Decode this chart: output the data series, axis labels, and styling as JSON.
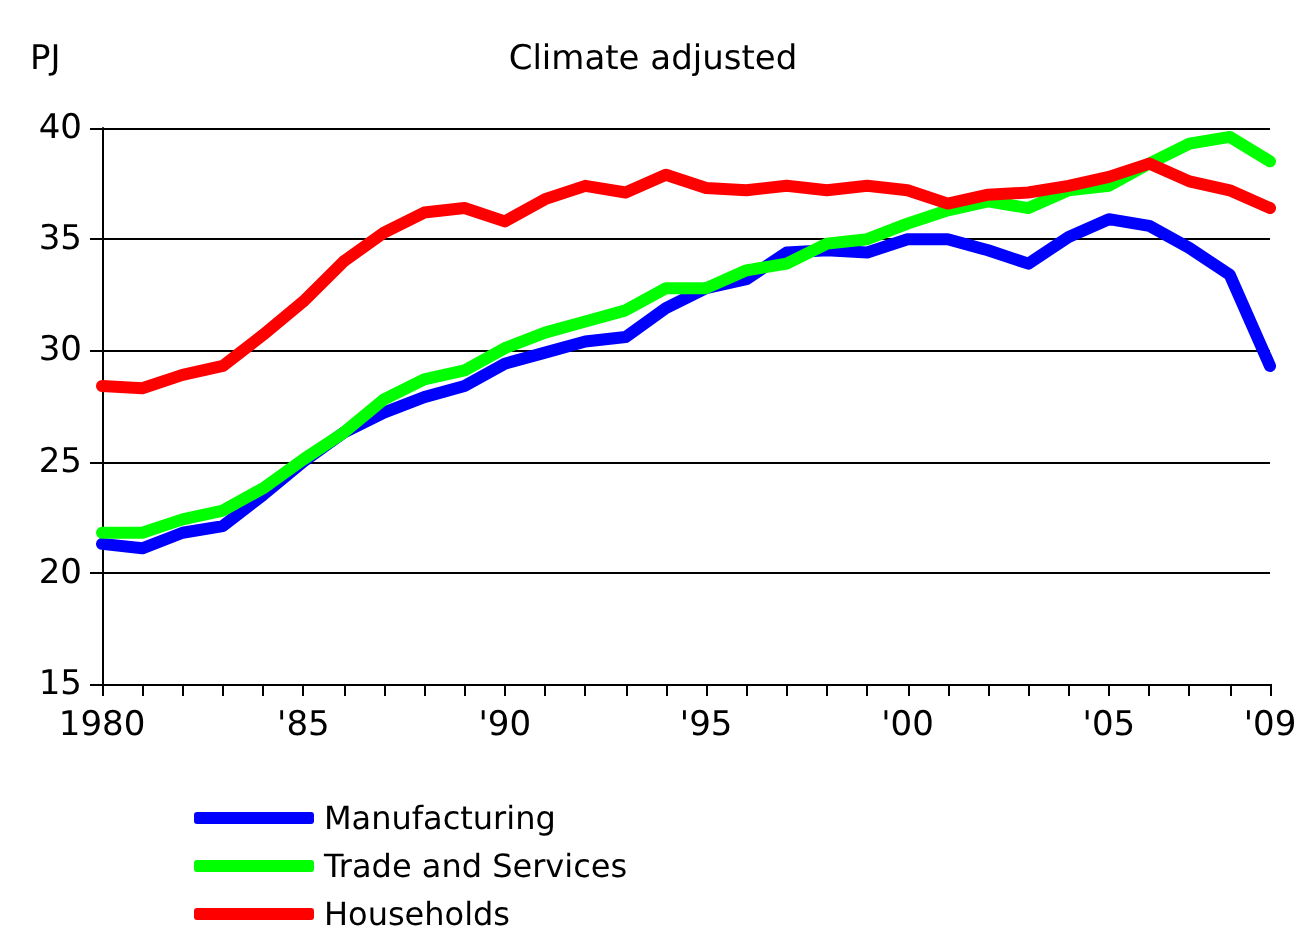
{
  "chart_data": {
    "type": "line",
    "title": "Climate adjusted",
    "ylabel": "PJ",
    "x": [
      1980,
      1981,
      1982,
      1983,
      1984,
      1985,
      1986,
      1987,
      1988,
      1989,
      1990,
      1991,
      1992,
      1993,
      1994,
      1995,
      1996,
      1997,
      1998,
      1999,
      2000,
      2001,
      2002,
      2003,
      2004,
      2005,
      2006,
      2007,
      2008,
      2009
    ],
    "series": [
      {
        "name": "Manufacturing",
        "color": "#0000ff",
        "values": [
          21.3,
          21.1,
          21.8,
          22.1,
          23.5,
          25.0,
          26.3,
          27.2,
          27.9,
          28.4,
          29.4,
          29.9,
          30.4,
          30.6,
          31.9,
          32.8,
          33.2,
          34.4,
          34.5,
          34.4,
          35.0,
          35.0,
          34.5,
          33.9,
          35.1,
          35.9,
          35.6,
          34.6,
          33.4,
          29.3
        ]
      },
      {
        "name": "Trade and Services",
        "color": "#00ff00",
        "values": [
          21.8,
          21.8,
          22.4,
          22.8,
          23.8,
          25.1,
          26.3,
          27.8,
          28.7,
          29.1,
          30.1,
          30.8,
          31.3,
          31.8,
          32.8,
          32.8,
          33.6,
          33.9,
          34.8,
          35.0,
          35.7,
          36.3,
          36.7,
          36.4,
          37.2,
          37.4,
          38.4,
          39.3,
          39.6,
          38.5
        ]
      },
      {
        "name": "Households",
        "color": "#ff0000",
        "values": [
          28.4,
          28.3,
          28.9,
          29.3,
          30.7,
          32.2,
          34.0,
          35.3,
          36.2,
          36.4,
          35.8,
          36.8,
          37.4,
          37.1,
          37.9,
          37.3,
          37.2,
          37.4,
          37.2,
          37.4,
          37.2,
          36.6,
          37.0,
          37.1,
          37.4,
          37.8,
          38.4,
          37.6,
          37.2,
          36.4
        ]
      }
    ],
    "xlim": [
      1980,
      2009
    ],
    "xticks": [
      {
        "value": 1980,
        "label": "1980"
      },
      {
        "value": 1981,
        "label": null
      },
      {
        "value": 1982,
        "label": null
      },
      {
        "value": 1983,
        "label": null
      },
      {
        "value": 1984,
        "label": null
      },
      {
        "value": 1985,
        "label": "'85"
      },
      {
        "value": 1986,
        "label": null
      },
      {
        "value": 1987,
        "label": null
      },
      {
        "value": 1988,
        "label": null
      },
      {
        "value": 1989,
        "label": null
      },
      {
        "value": 1990,
        "label": "'90"
      },
      {
        "value": 1991,
        "label": null
      },
      {
        "value": 1992,
        "label": null
      },
      {
        "value": 1993,
        "label": null
      },
      {
        "value": 1994,
        "label": null
      },
      {
        "value": 1995,
        "label": "'95"
      },
      {
        "value": 1996,
        "label": null
      },
      {
        "value": 1997,
        "label": null
      },
      {
        "value": 1998,
        "label": null
      },
      {
        "value": 1999,
        "label": null
      },
      {
        "value": 2000,
        "label": "'00"
      },
      {
        "value": 2001,
        "label": null
      },
      {
        "value": 2002,
        "label": null
      },
      {
        "value": 2003,
        "label": null
      },
      {
        "value": 2004,
        "label": null
      },
      {
        "value": 2005,
        "label": "'05"
      },
      {
        "value": 2006,
        "label": null
      },
      {
        "value": 2007,
        "label": null
      },
      {
        "value": 2008,
        "label": null
      },
      {
        "value": 2009,
        "label": "'09"
      }
    ],
    "ylim": [
      15,
      40
    ],
    "yticks": [
      15,
      20,
      25,
      30,
      35,
      40
    ],
    "grid": "y",
    "legend": "bottom left",
    "marker": "none",
    "line_style": "solid"
  }
}
